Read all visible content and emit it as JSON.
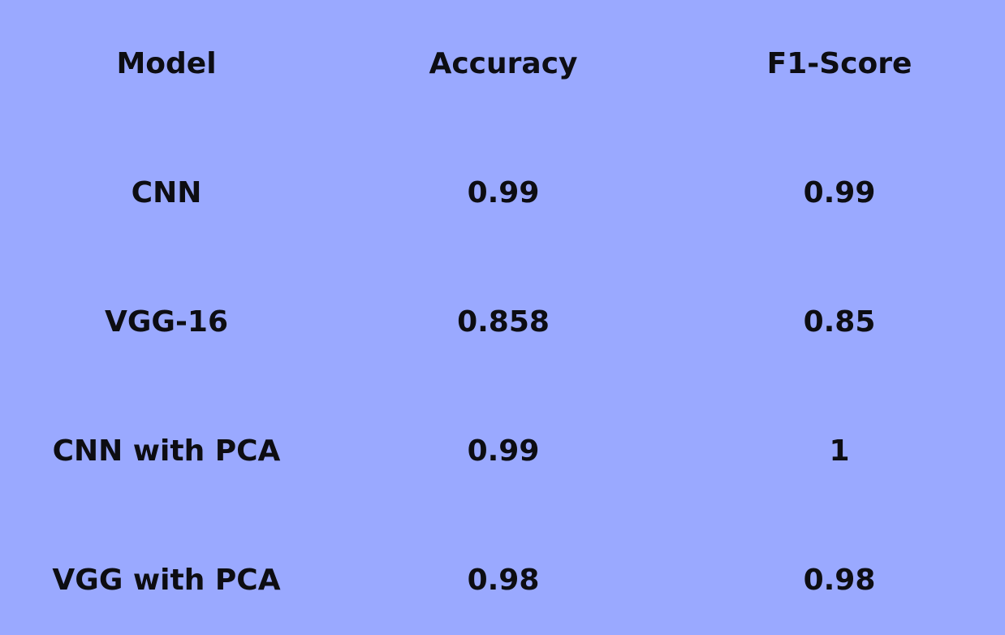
{
  "chart_data": {
    "type": "table",
    "columns": [
      "Model",
      "Accuracy",
      "F1-Score"
    ],
    "rows": [
      [
        "CNN",
        "0.99",
        "0.99"
      ],
      [
        "VGG-16",
        "0.858",
        "0.85"
      ],
      [
        "CNN with PCA",
        "0.99",
        "1"
      ],
      [
        "VGG with PCA",
        "0.98",
        "0.98"
      ]
    ]
  },
  "colors": {
    "background": "#9aa9ff",
    "text": "#0d0d12"
  }
}
